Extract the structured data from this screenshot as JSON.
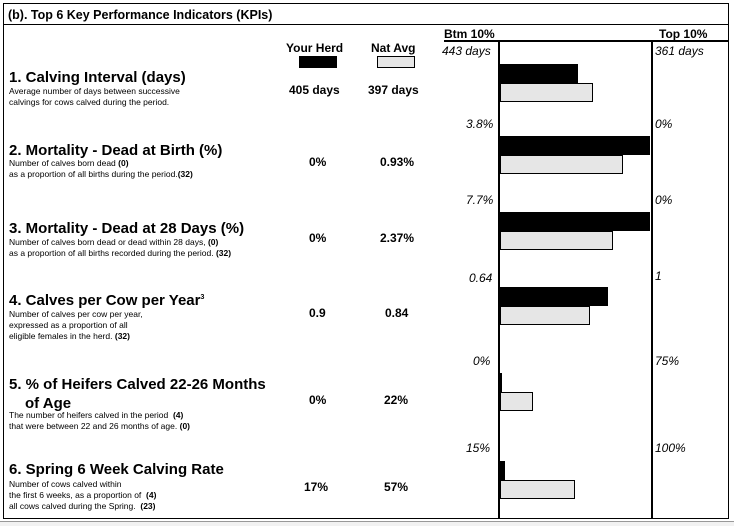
{
  "section": {
    "title": "(b). Top 6 Key Performance Indicators (KPIs)"
  },
  "columns": {
    "your_herd": "Your Herd",
    "nat_avg": "Nat Avg",
    "btm": "Btm 10%",
    "top": "Top 10%"
  },
  "colors": {
    "your_herd_bar": "#000000",
    "nat_avg_bar": "#e6e6e6"
  },
  "kpis": [
    {
      "title": "1. Calving Interval (days)",
      "desc": [
        "Average number of days between successive",
        "calvings for cows calved during the period."
      ],
      "your_herd": "405 days",
      "nat_avg": "397 days",
      "btm_label": "443 days",
      "top_label": "361 days",
      "your_herd_fill": 0.52,
      "nat_avg_fill": 0.62
    },
    {
      "title": "2. Mortality - Dead at Birth (%)",
      "desc": [
        "Number of calves born dead",
        "as a proportion of all births during the period."
      ],
      "desc_counts": [
        "(0)",
        "(32)"
      ],
      "your_herd": "0%",
      "nat_avg": "0.93%",
      "btm_label": "3.8%",
      "top_label": "0%",
      "your_herd_fill": 1.0,
      "nat_avg_fill": 0.82
    },
    {
      "title": "3. Mortality - Dead at 28 Days (%)",
      "desc": [
        "Number of calves born dead or dead within 28 days,",
        "as a proportion of all births recorded during the period."
      ],
      "desc_counts": [
        "(0)",
        "(32)"
      ],
      "your_herd": "0%",
      "nat_avg": "2.37%",
      "btm_label": "7.7%",
      "top_label": "0%",
      "your_herd_fill": 1.0,
      "nat_avg_fill": 0.75
    },
    {
      "title": "4. Calves per Cow per Year",
      "title_sup": "3",
      "desc": [
        "Number of calves per cow per year,",
        "expressed as a proportion of all",
        "eligible females in the herd."
      ],
      "desc_counts": [
        "(32)"
      ],
      "your_herd": "0.9",
      "nat_avg": "0.84",
      "btm_label": "0.64",
      "top_label": "1",
      "your_herd_fill": 0.72,
      "nat_avg_fill": 0.6
    },
    {
      "title_lines": [
        "5. % of Heifers Calved 22-26 Months",
        "of Age"
      ],
      "desc": [
        "The number of heifers calved in the period",
        "that were between 22 and 26 months of age."
      ],
      "desc_counts": [
        "(4)",
        "(0)"
      ],
      "your_herd": "0%",
      "nat_avg": "22%",
      "btm_label": "0%",
      "top_label": "75%",
      "your_herd_fill": 0.0,
      "nat_avg_fill": 0.22
    },
    {
      "title": "6. Spring 6 Week Calving Rate",
      "desc": [
        "Number of cows calved within",
        "the first 6 weeks, as a proportion of",
        "all cows calved during the Spring."
      ],
      "desc_counts": [
        "(4)",
        "(23)"
      ],
      "your_herd": "17%",
      "nat_avg": "57%",
      "btm_label": "15%",
      "top_label": "100%",
      "your_herd_fill": 0.03,
      "nat_avg_fill": 0.5
    }
  ]
}
